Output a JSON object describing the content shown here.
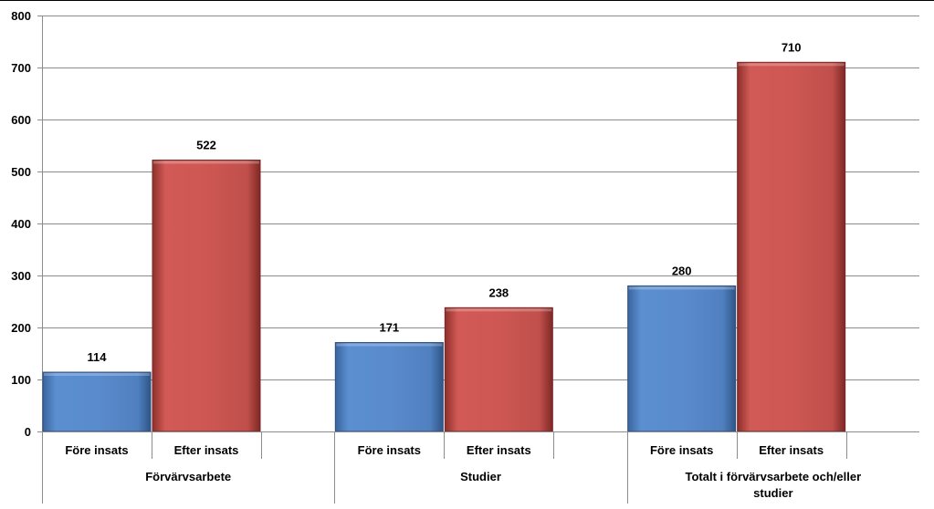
{
  "chart_data": {
    "type": "bar",
    "title": "",
    "xlabel": "",
    "ylabel": "",
    "ylim": [
      0,
      800
    ],
    "yticks": [
      0,
      100,
      200,
      300,
      400,
      500,
      600,
      700,
      800
    ],
    "grid": true,
    "legend": "none",
    "groups": [
      {
        "label": "Förvärvsarbete",
        "label_lines": [
          "Förvärvsarbete"
        ]
      },
      {
        "label": "Studier",
        "label_lines": [
          "Studier"
        ]
      },
      {
        "label": "Totalt i förvärvsarbete och/eller studier",
        "label_lines": [
          "Totalt i förvärvsarbete och/eller",
          "studier"
        ]
      }
    ],
    "series": [
      {
        "name": "Före insats",
        "values": [
          114,
          171,
          280
        ]
      },
      {
        "name": "Efter insats",
        "values": [
          522,
          238,
          710
        ]
      }
    ],
    "colors": {
      "series": [
        "#4f81bd",
        "#c0504d"
      ],
      "gridline": "#8c8c8c",
      "axis": "#8c8c8c"
    }
  }
}
